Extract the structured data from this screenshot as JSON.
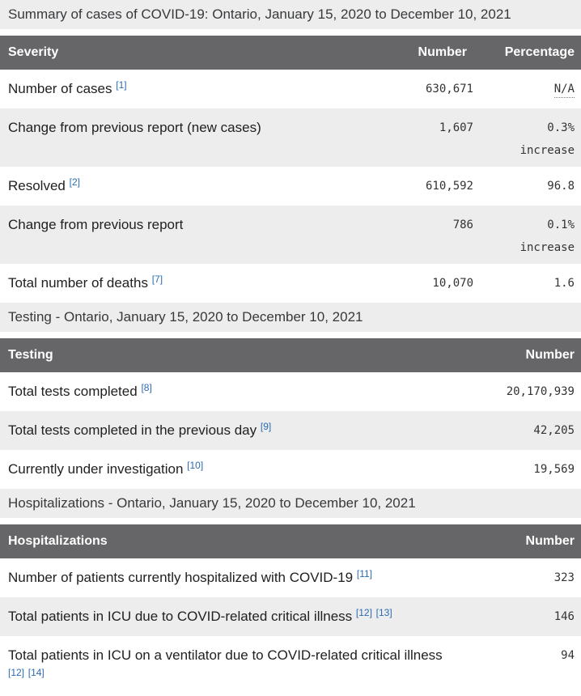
{
  "colors": {
    "header_bg": "#666668",
    "caption_bg": "#ededee",
    "zebra_bg": "#ededee",
    "footnote_link": "#2b6cb0",
    "header_text": "#ffffff",
    "body_text": "#212121"
  },
  "tables": [
    {
      "caption": "Summary of cases of COVID-19: Ontario, January 15, 2020 to December 10, 2021",
      "columns": [
        "Severity",
        "Number",
        "Percentage"
      ],
      "rows": [
        {
          "label": "Number of cases",
          "footnotes": [
            "[1]"
          ],
          "number": "630,671",
          "percentage": "N/A",
          "percentage_is_abbr": true
        },
        {
          "label": "Change from previous report (new cases)",
          "footnotes": [],
          "number": "1,607",
          "percentage": "0.3%",
          "percentage_note": "increase"
        },
        {
          "label": "Resolved",
          "footnotes": [
            "[2]"
          ],
          "number": "610,592",
          "percentage": "96.8"
        },
        {
          "label": "Change from previous report",
          "footnotes": [],
          "number": "786",
          "percentage": "0.1%",
          "percentage_note": "increase"
        },
        {
          "label": "Total number of deaths",
          "footnotes": [
            "[7]"
          ],
          "number": "10,070",
          "percentage": "1.6"
        }
      ]
    },
    {
      "caption": "Testing - Ontario, January 15, 2020 to December 10, 2021",
      "columns": [
        "Testing",
        "Number"
      ],
      "rows": [
        {
          "label": "Total tests completed",
          "footnotes": [
            "[8]"
          ],
          "number": "20,170,939"
        },
        {
          "label": "Total tests completed in the previous day",
          "footnotes": [
            "[9]"
          ],
          "number": "42,205"
        },
        {
          "label": "Currently under investigation",
          "footnotes": [
            "[10]"
          ],
          "number": "19,569"
        }
      ]
    },
    {
      "caption": "Hospitalizations - Ontario, January 15, 2020 to December 10, 2021",
      "columns": [
        "Hospitalizations",
        "Number"
      ],
      "rows": [
        {
          "label": "Number of patients currently hospitalized with COVID-19",
          "footnotes": [
            "[11]"
          ],
          "number": "323"
        },
        {
          "label": "Total patients in ICU due to COVID-related critical illness",
          "footnotes": [
            "[12]",
            "[13]"
          ],
          "number": "146"
        },
        {
          "label": "Total patients in ICU on a ventilator due to COVID-related critical illness",
          "footnotes": [
            "[12]",
            "[14]"
          ],
          "number": "94"
        }
      ]
    }
  ]
}
